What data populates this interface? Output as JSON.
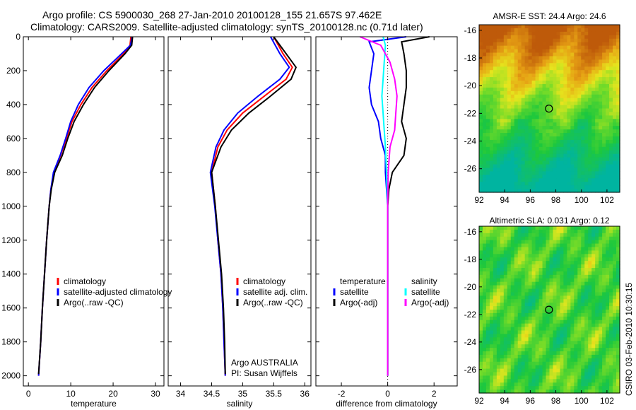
{
  "title_line1": "Argo profile: CS 5900030_268 27-Jan-2010 20100128_155 21.657S 97.462E",
  "title_line2": "Climatology: CARS2009. Satellite-adjusted climatology: synTS_20100128.nc (0.71d later)",
  "credit": "CSIRO 03-Feb-2010 10:30:15",
  "colors": {
    "climatology": "#ff0000",
    "satellite": "#0000ff",
    "argo": "#000000",
    "sal_satellite": "#00ffff",
    "sal_argo": "#ff00ff"
  },
  "chart_data": [
    {
      "type": "line",
      "xlabel": "temperature",
      "ylabel": "",
      "xlim": [
        -1.2,
        32
      ],
      "ylim": [
        2060,
        0
      ],
      "xticks": [
        "0",
        "10",
        "20",
        "30"
      ],
      "xtick_values": [
        0,
        10,
        20,
        30
      ],
      "yticks": [
        "0",
        "200",
        "400",
        "600",
        "800",
        "1000",
        "1200",
        "1400",
        "1600",
        "1800",
        "2000"
      ],
      "ytick_values": [
        0,
        200,
        400,
        600,
        800,
        1000,
        1200,
        1400,
        1600,
        1800,
        2000
      ],
      "legend": [
        "climatology",
        "satellite-adjusted climatology",
        "Argo(..raw -QC)"
      ],
      "series": [
        {
          "name": "climatology",
          "color": "#ff0000",
          "points": [
            [
              0,
              24.2
            ],
            [
              50,
              24
            ],
            [
              100,
              22.5
            ],
            [
              200,
              18.5
            ],
            [
              300,
              15
            ],
            [
              400,
              12.4
            ],
            [
              500,
              10.3
            ],
            [
              600,
              9
            ],
            [
              700,
              7.6
            ],
            [
              800,
              6
            ],
            [
              900,
              5.3
            ],
            [
              1000,
              4.9
            ],
            [
              1200,
              4.3
            ],
            [
              1400,
              3.8
            ],
            [
              1600,
              3.3
            ],
            [
              1800,
              2.9
            ],
            [
              2000,
              2.4
            ]
          ]
        },
        {
          "name": "satellite",
          "color": "#0000ff",
          "points": [
            [
              0,
              24.5
            ],
            [
              50,
              24.1
            ],
            [
              100,
              22
            ],
            [
              200,
              17.8
            ],
            [
              300,
              14.3
            ],
            [
              400,
              11.8
            ],
            [
              500,
              10
            ],
            [
              600,
              8.8
            ],
            [
              700,
              7.5
            ],
            [
              800,
              5.9
            ],
            [
              900,
              5.3
            ],
            [
              1000,
              4.9
            ],
            [
              1200,
              4.3
            ],
            [
              1400,
              3.8
            ],
            [
              1600,
              3.3
            ],
            [
              1800,
              2.9
            ],
            [
              2000,
              2.4
            ]
          ]
        },
        {
          "name": "Argo",
          "color": "#000000",
          "points": [
            [
              0,
              24.6
            ],
            [
              50,
              24.4
            ],
            [
              100,
              22.8
            ],
            [
              200,
              19
            ],
            [
              300,
              15.6
            ],
            [
              400,
              13
            ],
            [
              500,
              10.8
            ],
            [
              600,
              9.3
            ],
            [
              700,
              8
            ],
            [
              800,
              6.2
            ],
            [
              900,
              5.4
            ],
            [
              1000,
              4.9
            ],
            [
              1200,
              4.3
            ],
            [
              1400,
              3.8
            ],
            [
              1600,
              3.3
            ],
            [
              1800,
              2.9
            ],
            [
              1990,
              2.4
            ]
          ]
        }
      ]
    },
    {
      "type": "line",
      "xlabel": "salinity",
      "xlim": [
        33.8,
        36.1
      ],
      "ylim": [
        2060,
        0
      ],
      "xticks": [
        "34",
        "34.5",
        "35",
        "35.5",
        "36"
      ],
      "xtick_values": [
        34,
        34.5,
        35,
        35.5,
        36
      ],
      "legend": [
        "climatology",
        "satellite adj. clim.",
        "Argo(..raw -QC)"
      ],
      "annotations": [
        "Argo AUSTRALIA",
        "PI: Susan Wijffels"
      ],
      "series": [
        {
          "name": "climatology",
          "color": "#ff0000",
          "points": [
            [
              0,
              35.5
            ],
            [
              100,
              35.65
            ],
            [
              180,
              35.8
            ],
            [
              250,
              35.7
            ],
            [
              350,
              35.35
            ],
            [
              450,
              35.0
            ],
            [
              550,
              34.75
            ],
            [
              650,
              34.6
            ],
            [
              800,
              34.5
            ],
            [
              1000,
              34.56
            ],
            [
              1200,
              34.6
            ],
            [
              1400,
              34.65
            ],
            [
              1600,
              34.68
            ],
            [
              1800,
              34.7
            ],
            [
              2000,
              34.72
            ]
          ]
        },
        {
          "name": "satellite",
          "color": "#0000ff",
          "points": [
            [
              0,
              35.45
            ],
            [
              100,
              35.6
            ],
            [
              180,
              35.75
            ],
            [
              250,
              35.6
            ],
            [
              350,
              35.25
            ],
            [
              450,
              34.92
            ],
            [
              550,
              34.7
            ],
            [
              650,
              34.57
            ],
            [
              800,
              34.48
            ],
            [
              1000,
              34.55
            ],
            [
              1200,
              34.6
            ],
            [
              1400,
              34.65
            ],
            [
              1600,
              34.68
            ],
            [
              1800,
              34.7
            ],
            [
              2000,
              34.72
            ]
          ]
        },
        {
          "name": "Argo",
          "color": "#000000",
          "points": [
            [
              0,
              35.5
            ],
            [
              100,
              35.7
            ],
            [
              180,
              35.86
            ],
            [
              250,
              35.78
            ],
            [
              350,
              35.45
            ],
            [
              450,
              35.1
            ],
            [
              550,
              34.82
            ],
            [
              650,
              34.65
            ],
            [
              800,
              34.5
            ],
            [
              1000,
              34.56
            ],
            [
              1200,
              34.61
            ],
            [
              1400,
              34.66
            ],
            [
              1600,
              34.69
            ],
            [
              1800,
              34.71
            ],
            [
              1990,
              34.72
            ]
          ]
        }
      ]
    },
    {
      "type": "line",
      "xlabel": "difference from climatology",
      "xlim": [
        -3.1,
        3
      ],
      "ylim": [
        2060,
        0
      ],
      "xticks": [
        "-2",
        "0",
        "2"
      ],
      "xtick_values": [
        -2,
        0,
        2
      ],
      "legend_groups": [
        {
          "title": "temperature",
          "items": [
            "satellite",
            "Argo(-adj)"
          ]
        },
        {
          "title": "salinity",
          "items": [
            "satellite",
            "Argo(-adj)"
          ]
        }
      ],
      "series": [
        {
          "name": "temperature satellite",
          "color": "#0000ff",
          "points": [
            [
              0,
              0.8
            ],
            [
              30,
              -0.8
            ],
            [
              100,
              -0.6
            ],
            [
              200,
              -0.7
            ],
            [
              300,
              -0.8
            ],
            [
              400,
              -0.7
            ],
            [
              500,
              -0.4
            ],
            [
              600,
              -0.3
            ],
            [
              700,
              -0.1
            ],
            [
              800,
              -0.1
            ],
            [
              900,
              -0.05
            ],
            [
              1000,
              0
            ],
            [
              2000,
              0
            ]
          ]
        },
        {
          "name": "temperature Argo",
          "color": "#000000",
          "points": [
            [
              0,
              1.8
            ],
            [
              30,
              0.6
            ],
            [
              100,
              0.7
            ],
            [
              200,
              0.8
            ],
            [
              300,
              0.8
            ],
            [
              400,
              0.7
            ],
            [
              500,
              0.6
            ],
            [
              600,
              0.8
            ],
            [
              700,
              0.7
            ],
            [
              800,
              0.2
            ],
            [
              900,
              0.05
            ],
            [
              1000,
              0
            ],
            [
              2000,
              0
            ]
          ]
        },
        {
          "name": "salinity satellite",
          "color": "#00ffff",
          "points": [
            [
              0,
              -0.2
            ],
            [
              50,
              -0.1
            ],
            [
              150,
              -0.15
            ],
            [
              250,
              -0.2
            ],
            [
              350,
              -0.25
            ],
            [
              450,
              -0.2
            ],
            [
              550,
              -0.15
            ],
            [
              650,
              -0.1
            ],
            [
              800,
              -0.05
            ],
            [
              1000,
              0
            ],
            [
              2000,
              0
            ]
          ]
        },
        {
          "name": "salinity Argo",
          "color": "#ff00ff",
          "points": [
            [
              0,
              -1.2
            ],
            [
              50,
              -0.3
            ],
            [
              150,
              0.1
            ],
            [
              250,
              0.3
            ],
            [
              350,
              0.4
            ],
            [
              450,
              0.35
            ],
            [
              550,
              0.3
            ],
            [
              650,
              0.1
            ],
            [
              800,
              0.02
            ],
            [
              1000,
              0
            ],
            [
              2000,
              0
            ]
          ]
        }
      ]
    },
    {
      "type": "heatmap",
      "title": "AMSR-E SST: 24.4 Argo: 24.6",
      "xlim": [
        92,
        103
      ],
      "ylim": [
        -27.7,
        -15.6
      ],
      "xticks": [
        "92",
        "94",
        "96",
        "98",
        "100",
        "102"
      ],
      "xtick_values": [
        92,
        94,
        96,
        98,
        100,
        102
      ],
      "yticks": [
        "-16",
        "-18",
        "-20",
        "-22",
        "-24",
        "-26"
      ],
      "ytick_values": [
        -16,
        -18,
        -20,
        -22,
        -24,
        -26
      ],
      "marker": {
        "lon": 97.462,
        "lat": -21.657
      }
    },
    {
      "type": "heatmap",
      "title": "Altimetric SLA: 0.031 Argo: 0.12",
      "xlim": [
        92,
        103
      ],
      "ylim": [
        -27.7,
        -15.6
      ],
      "xticks": [
        "92",
        "94",
        "96",
        "98",
        "100",
        "102"
      ],
      "xtick_values": [
        92,
        94,
        96,
        98,
        100,
        102
      ],
      "yticks": [
        "-16",
        "-18",
        "-20",
        "-22",
        "-24",
        "-26"
      ],
      "ytick_values": [
        -16,
        -18,
        -20,
        -22,
        -24,
        -26
      ],
      "marker": {
        "lon": 97.462,
        "lat": -21.657
      }
    }
  ]
}
